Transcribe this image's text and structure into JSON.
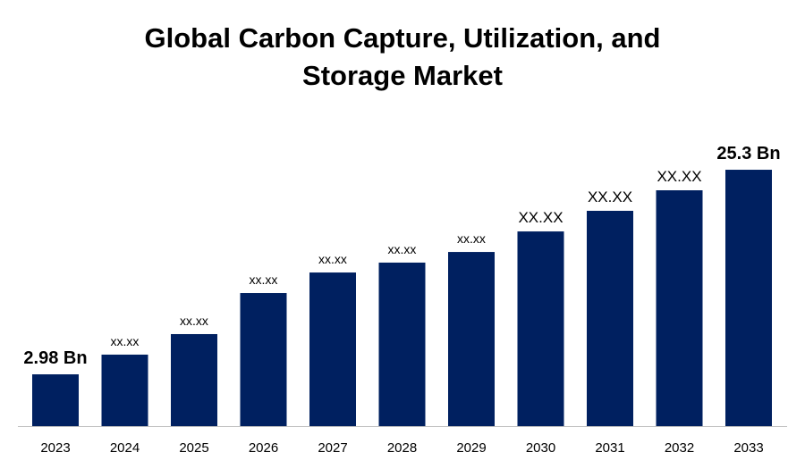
{
  "chart_data": {
    "type": "bar",
    "title": "Global Carbon Capture, Utilization, and Storage Market",
    "title_lines": [
      "Global Carbon Capture, Utilization, and",
      "Storage Market"
    ],
    "categories": [
      "2023",
      "2024",
      "2025",
      "2026",
      "2027",
      "2028",
      "2029",
      "2030",
      "2031",
      "2032",
      "2033"
    ],
    "values": [
      2.98,
      5.13,
      7.37,
      11.85,
      14.09,
      15.17,
      16.33,
      18.57,
      20.82,
      23.06,
      25.3
    ],
    "data_labels": [
      "2.98 Bn",
      "xx.xx",
      "xx.xx",
      "xx.xx",
      "xx.xx",
      "xx.xx",
      "xx.xx",
      "XX.XX",
      "XX.XX",
      "XX.XX",
      "25.3 Bn"
    ],
    "xlabel": "",
    "ylabel": "",
    "grid": false,
    "bar_color": "#002060"
  }
}
